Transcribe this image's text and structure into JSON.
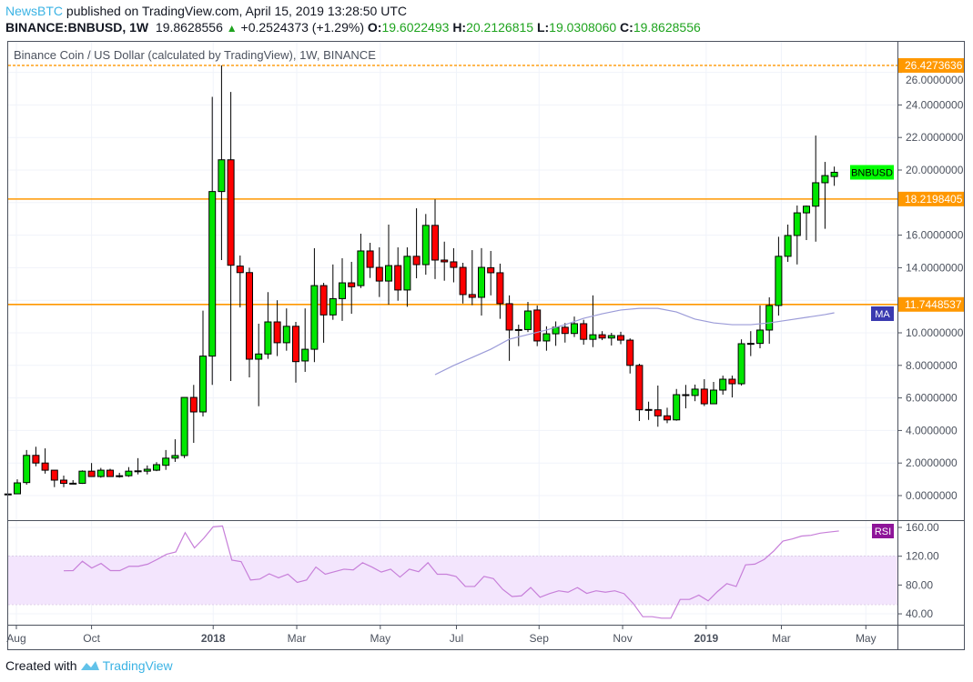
{
  "header": {
    "publisher": "NewsBTC",
    "published_text": " published on TradingView.com, April 15, 2019 13:28:50 UTC",
    "symbol": "BINANCE:BNBUSD, 1W",
    "last": "19.8628556",
    "change": "+0.2524373 (+1.29%)",
    "o_label": "O:",
    "o": "19.6022493",
    "h_label": "H:",
    "h": "20.2126815",
    "l_label": "L:",
    "l": "19.0308060",
    "c_label": "C:",
    "c": "19.8628556"
  },
  "chart_title": "Binance Coin / US Dollar (calculated by TradingView), 1W, BINANCE",
  "footer": {
    "created_with": "Created with",
    "brand": "TradingView"
  },
  "colors": {
    "up": "#00e600",
    "down": "#ff0000",
    "level": "#ff9800",
    "ma": "#9b9bd8",
    "rsi": "#c77fd9",
    "rsi_band": "#f3e5fd",
    "ma_tag": "#3a3ab0",
    "rsi_tag": "#8e1599",
    "symbol_tag": "#00ff00"
  },
  "chart_data": {
    "type": "candlestick",
    "title": "Binance Coin / US Dollar (calculated by TradingView), 1W, BINANCE",
    "price_axis": {
      "range": [
        -1,
        27
      ],
      "ticks": [
        "0.0000000",
        "2.0000000",
        "4.0000000",
        "6.0000000",
        "8.0000000",
        "10.0000000",
        "14.0000000",
        "16.0000000",
        "20.0000000",
        "22.0000000",
        "24.0000000",
        "26.0000000"
      ],
      "tick_values": [
        0,
        2,
        4,
        6,
        8,
        10,
        14,
        16,
        20,
        22,
        24,
        26
      ]
    },
    "levels": [
      {
        "value": 26.4273636,
        "label": "26.4273636",
        "style": "dotted"
      },
      {
        "value": 18.2198405,
        "label": "18.2198405",
        "style": "solid"
      },
      {
        "value": 11.7448537,
        "label": "11.7448537",
        "style": "solid"
      }
    ],
    "tags": {
      "symbol": "BNBUSD",
      "ma": "MA",
      "rsi": "RSI"
    },
    "symbol_tag_value": 19.86,
    "ma_tag_value": 11.0,
    "time_axis": [
      {
        "label": "Aug",
        "index": 0.9,
        "bold": false
      },
      {
        "label": "Oct",
        "index": 9.0,
        "bold": false
      },
      {
        "label": "2018",
        "index": 22.1,
        "bold": true
      },
      {
        "label": "Mar",
        "index": 31.1,
        "bold": false
      },
      {
        "label": "May",
        "index": 40.1,
        "bold": false
      },
      {
        "label": "Jul",
        "index": 48.3,
        "bold": false
      },
      {
        "label": "Sep",
        "index": 57.2,
        "bold": false
      },
      {
        "label": "Nov",
        "index": 66.2,
        "bold": false
      },
      {
        "label": "2019",
        "index": 75.2,
        "bold": true
      },
      {
        "label": "Mar",
        "index": 83.3,
        "bold": false
      },
      {
        "label": "May",
        "index": 92.4,
        "bold": false
      }
    ],
    "ohlc": [
      [
        0.1,
        0.12,
        0.12,
        0.1
      ],
      [
        0.11,
        1.0,
        0.1,
        0.78
      ],
      [
        0.8,
        2.8,
        0.67,
        2.47
      ],
      [
        2.47,
        3.0,
        1.8,
        2.0
      ],
      [
        2.0,
        2.9,
        1.35,
        1.56
      ],
      [
        1.56,
        1.56,
        0.52,
        0.95
      ],
      [
        0.95,
        1.23,
        0.52,
        0.75
      ],
      [
        0.75,
        0.95,
        0.7,
        0.76
      ],
      [
        0.75,
        1.55,
        0.72,
        1.5
      ],
      [
        1.5,
        2.0,
        1.15,
        1.17
      ],
      [
        1.17,
        1.7,
        1.1,
        1.56
      ],
      [
        1.56,
        1.65,
        1.15,
        1.17
      ],
      [
        1.17,
        1.4,
        1.1,
        1.22
      ],
      [
        1.22,
        1.75,
        1.15,
        1.5
      ],
      [
        1.5,
        2.3,
        1.3,
        1.52
      ],
      [
        1.5,
        1.85,
        1.3,
        1.62
      ],
      [
        1.56,
        2.05,
        1.5,
        1.9
      ],
      [
        1.86,
        2.8,
        1.58,
        2.3
      ],
      [
        2.3,
        3.46,
        2.07,
        2.46
      ],
      [
        2.46,
        6.03,
        2.3,
        6.03
      ],
      [
        6.03,
        6.8,
        3.24,
        5.14
      ],
      [
        5.14,
        11.36,
        4.86,
        8.57
      ],
      [
        8.57,
        24.5,
        6.8,
        18.68
      ],
      [
        18.68,
        26.43,
        14.47,
        20.63
      ],
      [
        20.63,
        24.8,
        7.04,
        14.15
      ],
      [
        14.1,
        14.75,
        11.56,
        13.7
      ],
      [
        13.7,
        14.0,
        7.26,
        8.38
      ],
      [
        8.38,
        10.56,
        5.49,
        8.7
      ],
      [
        8.7,
        12.5,
        8.4,
        10.67
      ],
      [
        10.67,
        12.0,
        8.57,
        9.39
      ],
      [
        9.39,
        11.5,
        8.9,
        10.4
      ],
      [
        10.4,
        10.67,
        6.94,
        8.23
      ],
      [
        8.27,
        11.5,
        7.6,
        8.99
      ],
      [
        8.99,
        15.2,
        8.2,
        12.9
      ],
      [
        12.9,
        13.07,
        9.39,
        11.1
      ],
      [
        11.1,
        14.2,
        10.8,
        12.1
      ],
      [
        12.1,
        14.58,
        10.73,
        13.07
      ],
      [
        13.07,
        14.36,
        11.17,
        12.83
      ],
      [
        12.9,
        16.09,
        12.75,
        15.03
      ],
      [
        15.03,
        15.53,
        13.37,
        14.02
      ],
      [
        14.02,
        15.25,
        12.2,
        13.18
      ],
      [
        13.18,
        16.65,
        11.73,
        14.13
      ],
      [
        14.13,
        15.25,
        11.97,
        12.63
      ],
      [
        12.63,
        15.25,
        11.6,
        14.7
      ],
      [
        14.7,
        17.65,
        13.35,
        14.19
      ],
      [
        14.19,
        17.3,
        13.57,
        16.6
      ],
      [
        16.6,
        18.2,
        13.3,
        14.47
      ],
      [
        14.47,
        15.6,
        13.2,
        14.36
      ],
      [
        14.36,
        15.2,
        13.1,
        14.02
      ],
      [
        14.02,
        14.3,
        11.8,
        12.35
      ],
      [
        12.35,
        15.08,
        11.7,
        12.18
      ],
      [
        12.18,
        15.2,
        11.06,
        14.02
      ],
      [
        14.0,
        15.03,
        12.3,
        13.69
      ],
      [
        13.69,
        14.25,
        10.86,
        11.79
      ],
      [
        11.79,
        12.3,
        8.28,
        10.17
      ],
      [
        10.17,
        10.5,
        9.18,
        10.2
      ],
      [
        10.2,
        11.9,
        10.05,
        11.34
      ],
      [
        11.4,
        11.68,
        9.18,
        9.5
      ],
      [
        9.5,
        10.4,
        8.9,
        9.94
      ],
      [
        9.94,
        10.7,
        9.2,
        10.34
      ],
      [
        10.34,
        10.6,
        9.4,
        9.96
      ],
      [
        9.96,
        11.0,
        9.74,
        10.56
      ],
      [
        10.56,
        10.8,
        9.27,
        9.6
      ],
      [
        9.6,
        12.3,
        9.12,
        9.88
      ],
      [
        9.88,
        10.1,
        9.55,
        9.68
      ],
      [
        9.68,
        10.0,
        9.22,
        9.83
      ],
      [
        9.83,
        10.06,
        9.3,
        9.55
      ],
      [
        9.55,
        9.66,
        7.5,
        8.0
      ],
      [
        8.0,
        8.1,
        4.58,
        5.27
      ],
      [
        5.27,
        5.77,
        4.65,
        5.29
      ],
      [
        5.27,
        6.76,
        4.23,
        4.9
      ],
      [
        4.9,
        5.4,
        4.45,
        4.65
      ],
      [
        4.65,
        6.55,
        4.6,
        6.2
      ],
      [
        6.2,
        6.8,
        5.36,
        6.15
      ],
      [
        6.15,
        6.82,
        5.8,
        6.54
      ],
      [
        6.54,
        7.15,
        5.5,
        5.64
      ],
      [
        5.64,
        6.98,
        5.64,
        6.48
      ],
      [
        6.48,
        7.37,
        6.2,
        7.15
      ],
      [
        7.15,
        7.37,
        6.03,
        6.87
      ],
      [
        6.87,
        9.6,
        6.76,
        9.33
      ],
      [
        9.33,
        10.1,
        8.57,
        9.35
      ],
      [
        9.35,
        11.68,
        9.05,
        10.17
      ],
      [
        10.17,
        12.18,
        9.33,
        11.68
      ],
      [
        11.68,
        15.9,
        11.06,
        14.7
      ],
      [
        14.7,
        16.65,
        14.36,
        15.98
      ],
      [
        15.98,
        17.82,
        14.2,
        17.37
      ],
      [
        17.37,
        17.82,
        15.7,
        17.78
      ],
      [
        17.78,
        22.12,
        15.6,
        19.22
      ],
      [
        19.22,
        20.5,
        16.39,
        19.66
      ],
      [
        19.6022,
        20.2127,
        19.0308,
        19.8629
      ]
    ],
    "ma": [
      [
        46,
        7.43
      ],
      [
        48,
        7.99
      ],
      [
        50,
        8.49
      ],
      [
        52,
        8.99
      ],
      [
        54,
        9.61
      ],
      [
        56,
        9.89
      ],
      [
        58,
        10.17
      ],
      [
        60,
        10.5
      ],
      [
        62,
        10.89
      ],
      [
        64,
        11.17
      ],
      [
        66,
        11.4
      ],
      [
        68,
        11.5
      ],
      [
        70,
        11.5
      ],
      [
        72,
        11.28
      ],
      [
        74,
        10.84
      ],
      [
        76,
        10.61
      ],
      [
        78,
        10.5
      ],
      [
        80,
        10.5
      ],
      [
        82,
        10.61
      ],
      [
        84,
        10.78
      ],
      [
        86,
        10.95
      ],
      [
        88,
        11.12
      ],
      [
        89,
        11.23
      ]
    ],
    "rsi": {
      "range": [
        27,
        167
      ],
      "ticks": [
        "160.00",
        "120.00",
        "80.00",
        "40.00"
      ],
      "tick_values": [
        160,
        120,
        80,
        40
      ],
      "band": [
        53,
        120
      ],
      "start_index": 6,
      "end_index": 89.5,
      "values": [
        99.8,
        100,
        113,
        103.6,
        110,
        100,
        100,
        106,
        106,
        109,
        115.5,
        122.7,
        126,
        152.8,
        131.6,
        145,
        160.8,
        162,
        114.6,
        112.5,
        87,
        88.3,
        95.6,
        90,
        95,
        83.7,
        87,
        105,
        95,
        98.5,
        102,
        101,
        111,
        105,
        98,
        102,
        91,
        102,
        98.5,
        111,
        95,
        95,
        92,
        78,
        78,
        92,
        89,
        74,
        64,
        65,
        76.5,
        63,
        68,
        72,
        70,
        76.5,
        68.4,
        72,
        70,
        72,
        68,
        54,
        36,
        36,
        34,
        34,
        60,
        60,
        66,
        58,
        71,
        82,
        78,
        108,
        109,
        115.5,
        127,
        141,
        144,
        148,
        149,
        152,
        153.6,
        155
      ]
    }
  }
}
